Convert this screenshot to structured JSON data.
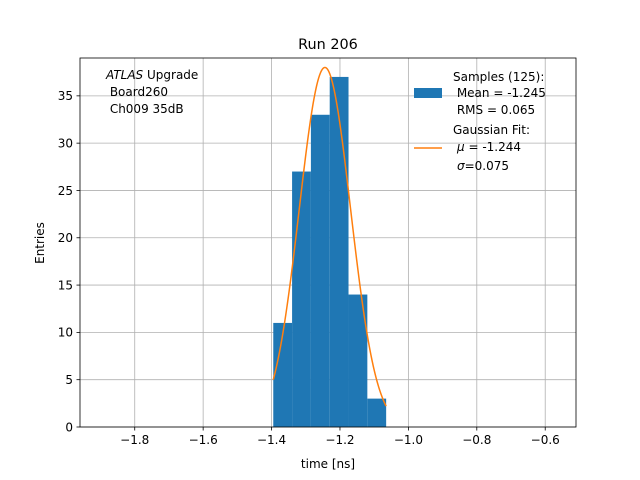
{
  "chart_data": {
    "type": "bar",
    "title": "Run 206",
    "xlabel": "time [ns]",
    "ylabel": "Entries",
    "xlim": [
      -1.96,
      -0.51
    ],
    "ylim": [
      0,
      39
    ],
    "xticks": [
      -1.8,
      -1.6,
      -1.4,
      -1.2,
      -1.0,
      -0.8,
      -0.6
    ],
    "xtick_labels": [
      "−1.8",
      "−1.6",
      "−1.4",
      "−1.2",
      "−1.0",
      "−0.8",
      "−0.6"
    ],
    "yticks": [
      0,
      5,
      10,
      15,
      20,
      25,
      30,
      35
    ],
    "ytick_labels": [
      "0",
      "5",
      "10",
      "15",
      "20",
      "25",
      "30",
      "35"
    ],
    "grid": true,
    "legend_position": "top-right",
    "colors": {
      "histogram": "#1f77b4",
      "fit": "#ff7f0e",
      "grid": "#b0b0b0"
    },
    "annotation": {
      "italic": "ATLAS",
      "line1_rest": " Upgrade",
      "line2": " Board260",
      "line3": " Ch009 35dB"
    },
    "histogram": {
      "name": "Samples (125):",
      "name_line2": " Mean = -1.245",
      "name_line3": " RMS = 0.065",
      "bins": [
        {
          "x0": -1.395,
          "x1": -1.34,
          "count": 11
        },
        {
          "x0": -1.34,
          "x1": -1.285,
          "count": 27
        },
        {
          "x0": -1.285,
          "x1": -1.23,
          "count": 33
        },
        {
          "x0": -1.23,
          "x1": -1.175,
          "count": 37
        },
        {
          "x0": -1.175,
          "x1": -1.12,
          "count": 14
        },
        {
          "x0": -1.12,
          "x1": -1.065,
          "count": 3
        }
      ]
    },
    "fit": {
      "name": "Gaussian Fit:",
      "mu_symbol": "μ",
      "mu_text": " = -1.244",
      "sigma_symbol": "σ",
      "sigma_text": "=0.075",
      "mu": -1.244,
      "sigma": 0.075,
      "amplitude": 38,
      "x_range": [
        -1.395,
        -1.065
      ]
    }
  }
}
